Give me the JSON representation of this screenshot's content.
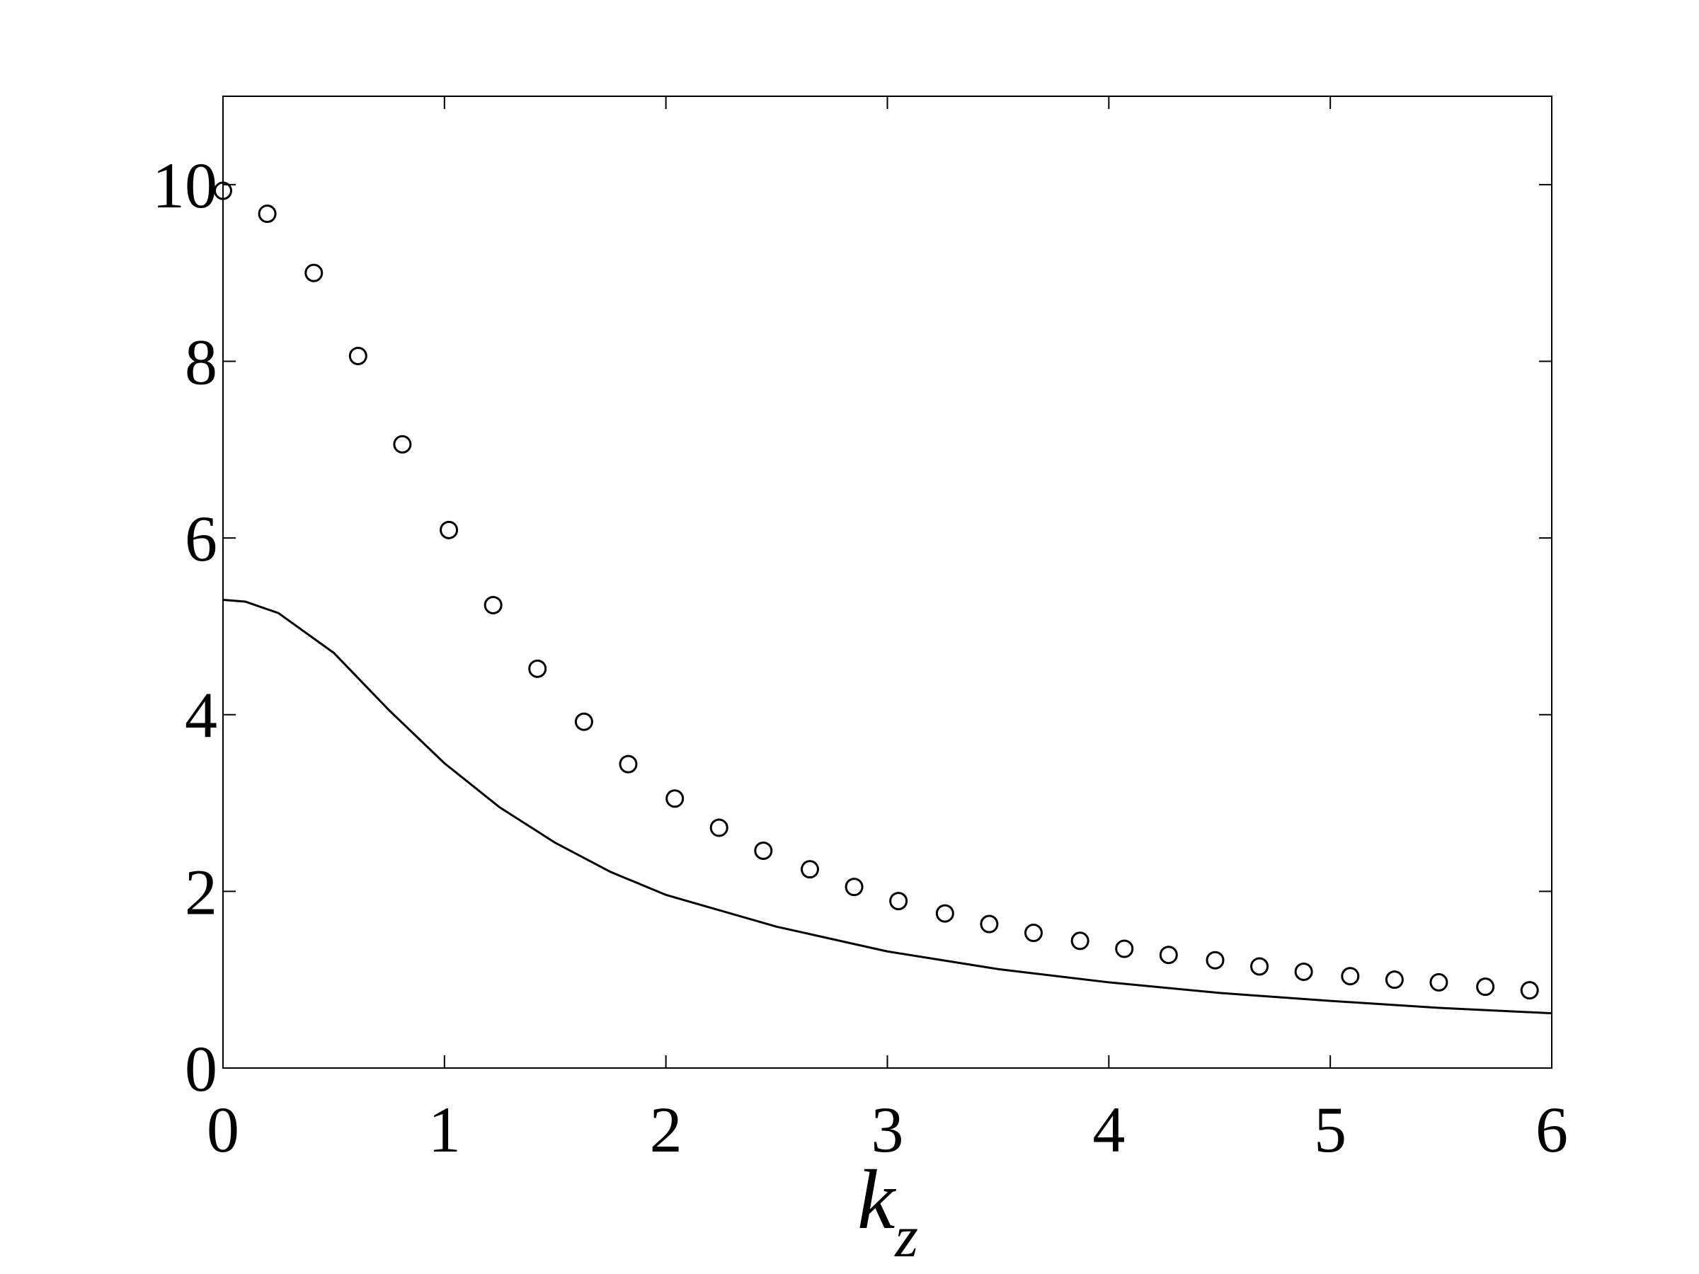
{
  "chart_data": {
    "type": "line",
    "x_label": {
      "base": "k",
      "sub": "z"
    },
    "xlim": [
      0,
      6
    ],
    "xticks": [
      0,
      1,
      2,
      3,
      4,
      5,
      6
    ],
    "ylim": [
      0,
      11
    ],
    "yticks": [
      0,
      2,
      4,
      6,
      8,
      10
    ],
    "grid": false,
    "series": [
      {
        "style": "markers",
        "color": "#000000",
        "x": [
          0,
          0.2,
          0.41,
          0.61,
          0.81,
          1.02,
          1.22,
          1.42,
          1.63,
          1.83,
          2.04,
          2.24,
          2.44,
          2.65,
          2.85,
          3.05,
          3.26,
          3.46,
          3.66,
          3.87,
          4.07,
          4.27,
          4.48,
          4.68,
          4.88,
          5.09,
          5.29,
          5.49,
          5.7,
          5.9
        ],
        "values": [
          9.93,
          9.67,
          9.0,
          8.06,
          7.06,
          6.09,
          5.24,
          4.52,
          3.92,
          3.44,
          3.05,
          2.72,
          2.46,
          2.25,
          2.05,
          1.89,
          1.75,
          1.63,
          1.53,
          1.44,
          1.35,
          1.28,
          1.22,
          1.15,
          1.09,
          1.04,
          1.0,
          0.97,
          0.92,
          0.88
        ]
      },
      {
        "style": "line",
        "color": "#000000",
        "x": [
          0,
          0.1,
          0.25,
          0.5,
          0.75,
          1,
          1.25,
          1.5,
          1.75,
          2,
          2.5,
          3,
          3.5,
          4,
          4.5,
          5,
          5.5,
          6
        ],
        "values": [
          5.3,
          5.28,
          5.15,
          4.7,
          4.05,
          3.45,
          2.95,
          2.55,
          2.22,
          1.96,
          1.6,
          1.32,
          1.12,
          0.97,
          0.85,
          0.76,
          0.68,
          0.62
        ]
      }
    ]
  }
}
